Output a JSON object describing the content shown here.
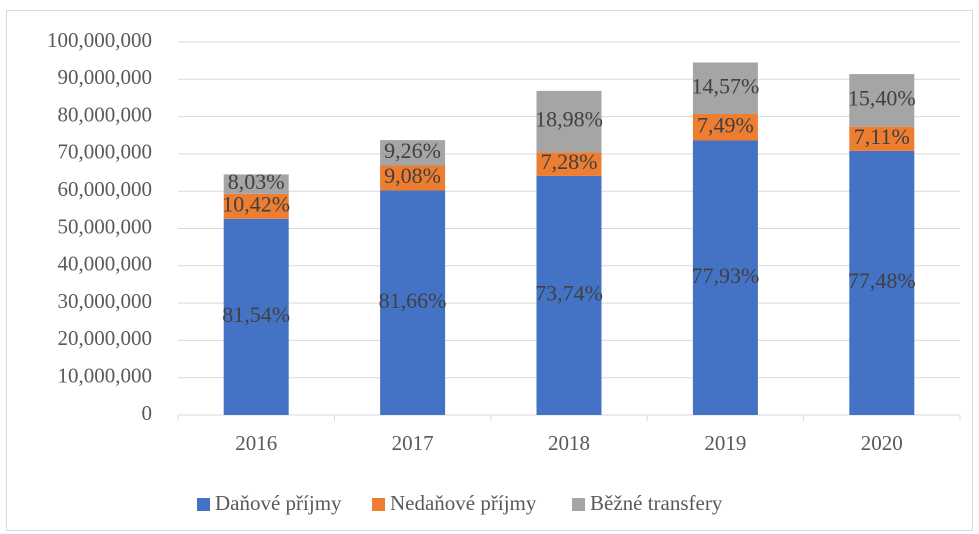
{
  "chart_data": {
    "type": "stacked_bar",
    "categories": [
      "2016",
      "2017",
      "2018",
      "2019",
      "2020"
    ],
    "series": [
      {
        "name": "Daňové příjmy",
        "color": "#4472c4",
        "values": [
          52600000,
          60200000,
          64100000,
          73600000,
          70800000
        ],
        "labels": [
          "81,54%",
          "81,66%",
          "73,74%",
          "77,93%",
          "77,48%"
        ]
      },
      {
        "name": "Nedaňové příjmy",
        "color": "#ed7d31",
        "values": [
          6700000,
          6700000,
          6300000,
          7100000,
          6500000
        ],
        "labels": [
          "10,42%",
          "9,08%",
          "7,28%",
          "7,49%",
          "7,11%"
        ]
      },
      {
        "name": "Běžné transfery",
        "color": "#a5a5a5",
        "values": [
          5200000,
          6800000,
          16500000,
          13800000,
          14100000
        ],
        "labels": [
          "8,03%",
          "9,26%",
          "18,98%",
          "14,57%",
          "15,40%"
        ]
      }
    ],
    "ylim": [
      0,
      100000000
    ],
    "yticks": [
      0,
      {
        "value": 10000000,
        "label": "10,000,000"
      },
      {
        "value": 20000000,
        "label": "20,000,000"
      },
      {
        "value": 30000000,
        "label": "30,000,000"
      },
      {
        "value": 40000000,
        "label": "40,000,000"
      },
      {
        "value": 50000000,
        "label": "50,000,000"
      },
      {
        "value": 60000000,
        "label": "60,000,000"
      },
      {
        "value": 70000000,
        "label": "70,000,000"
      },
      {
        "value": 80000000,
        "label": "80,000,000"
      },
      {
        "value": 90000000,
        "label": "90,000,000"
      },
      {
        "value": 100000000,
        "label": "100,000,000"
      }
    ],
    "grid": true,
    "legend": "bottom"
  }
}
